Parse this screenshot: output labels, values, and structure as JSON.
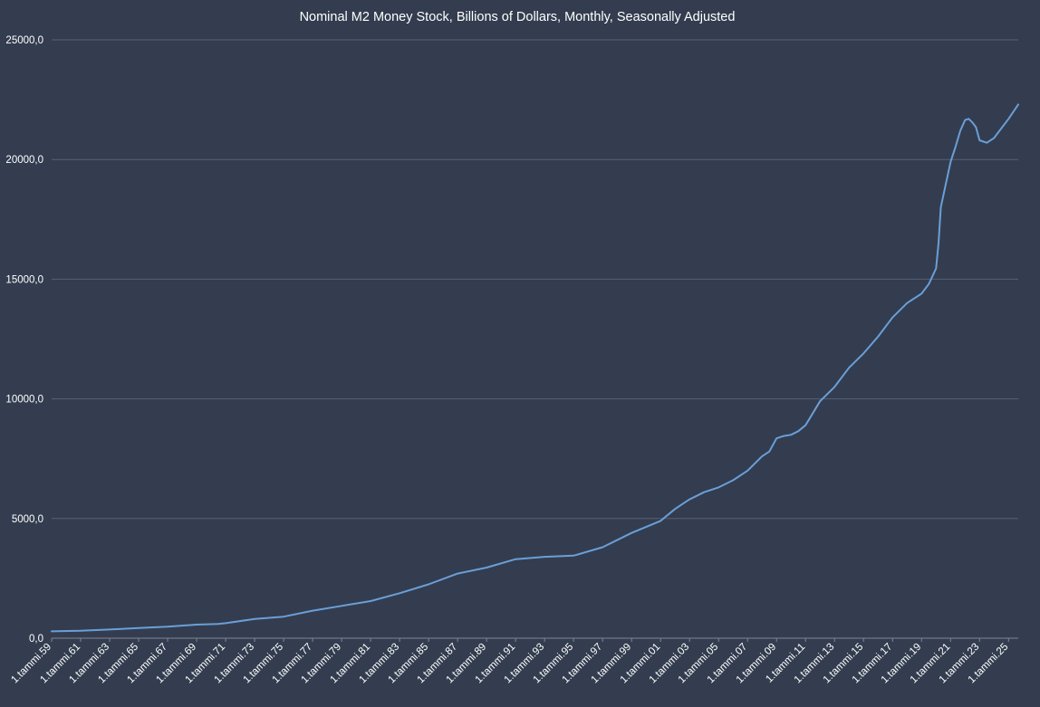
{
  "chart_data": {
    "type": "line",
    "title": "Nominal M2 Money Stock, Billions of Dollars, Monthly, Seasonally Adjusted",
    "xlabel": "",
    "ylabel": "",
    "ylim": [
      0,
      25000
    ],
    "y_ticks": [
      "0,0",
      "5000,0",
      "10000,0",
      "15000,0",
      "20000,0",
      "25000,0"
    ],
    "x_range": [
      1959,
      2025.67
    ],
    "x_tick_labels": [
      {
        "year": 1959,
        "label": "1.tammi.59"
      },
      {
        "year": 1961,
        "label": "1.tammi.61"
      },
      {
        "year": 1963,
        "label": "1.tammi.63"
      },
      {
        "year": 1965,
        "label": "1.tammi.65"
      },
      {
        "year": 1967,
        "label": "1.tammi.67"
      },
      {
        "year": 1969,
        "label": "1.tammi.69"
      },
      {
        "year": 1971,
        "label": "1.tammi.71"
      },
      {
        "year": 1973,
        "label": "1.tammi.73"
      },
      {
        "year": 1975,
        "label": "1.tammi.75"
      },
      {
        "year": 1977,
        "label": "1.tammi.77"
      },
      {
        "year": 1979,
        "label": "1.tammi.79"
      },
      {
        "year": 1981,
        "label": "1.tammi.81"
      },
      {
        "year": 1983,
        "label": "1.tammi.83"
      },
      {
        "year": 1985,
        "label": "1.tammi.85"
      },
      {
        "year": 1987,
        "label": "1.tammi.87"
      },
      {
        "year": 1989,
        "label": "1.tammi.89"
      },
      {
        "year": 1991,
        "label": "1.tammi.91"
      },
      {
        "year": 1993,
        "label": "1.tammi.93"
      },
      {
        "year": 1995,
        "label": "1.tammi.95"
      },
      {
        "year": 1997,
        "label": "1.tammi.97"
      },
      {
        "year": 1999,
        "label": "1.tammi.99"
      },
      {
        "year": 2001,
        "label": "1.tammi.01"
      },
      {
        "year": 2003,
        "label": "1.tammi.03"
      },
      {
        "year": 2005,
        "label": "1.tammi.05"
      },
      {
        "year": 2007,
        "label": "1.tammi.07"
      },
      {
        "year": 2009,
        "label": "1.tammi.09"
      },
      {
        "year": 2011,
        "label": "1.tammi.11"
      },
      {
        "year": 2013,
        "label": "1.tammi.13"
      },
      {
        "year": 2015,
        "label": "1.tammi.15"
      },
      {
        "year": 2017,
        "label": "1.tammi.17"
      },
      {
        "year": 2019,
        "label": "1.tammi.19"
      },
      {
        "year": 2021,
        "label": "1.tammi.21"
      },
      {
        "year": 2023,
        "label": "1.tammi.23"
      },
      {
        "year": 2025,
        "label": "1.tammi.25"
      }
    ],
    "grid": true,
    "legend": "none",
    "colors": {
      "background": "#333d4f",
      "line": "#6a9fd8",
      "grid": "#566274",
      "text": "#ffffff"
    },
    "series": [
      {
        "points": [
          [
            1959,
            287
          ],
          [
            1961,
            312
          ],
          [
            1963,
            364
          ],
          [
            1965,
            424
          ],
          [
            1967,
            480
          ],
          [
            1969,
            568
          ],
          [
            1970.5,
            595
          ],
          [
            1971,
            626
          ],
          [
            1973,
            802
          ],
          [
            1975,
            900
          ],
          [
            1977,
            1150
          ],
          [
            1979,
            1350
          ],
          [
            1981,
            1550
          ],
          [
            1983,
            1880
          ],
          [
            1985,
            2250
          ],
          [
            1987,
            2700
          ],
          [
            1989,
            2950
          ],
          [
            1991,
            3300
          ],
          [
            1993,
            3400
          ],
          [
            1995,
            3450
          ],
          [
            1997,
            3800
          ],
          [
            1999,
            4400
          ],
          [
            2001,
            4900
          ],
          [
            2002,
            5400
          ],
          [
            2003,
            5800
          ],
          [
            2004,
            6100
          ],
          [
            2005,
            6300
          ],
          [
            2006,
            6600
          ],
          [
            2007,
            7000
          ],
          [
            2008,
            7600
          ],
          [
            2008.5,
            7800
          ],
          [
            2009,
            8350
          ],
          [
            2009.5,
            8450
          ],
          [
            2010,
            8500
          ],
          [
            2010.5,
            8650
          ],
          [
            2011,
            8900
          ],
          [
            2011.3,
            9200
          ],
          [
            2011.7,
            9600
          ],
          [
            2012,
            9900
          ],
          [
            2013,
            10500
          ],
          [
            2014,
            11300
          ],
          [
            2015,
            11900
          ],
          [
            2016,
            12600
          ],
          [
            2017,
            13400
          ],
          [
            2018,
            14000
          ],
          [
            2019,
            14400
          ],
          [
            2019.5,
            14800
          ],
          [
            2020,
            15450
          ],
          [
            2020.17,
            16500
          ],
          [
            2020.33,
            18000
          ],
          [
            2020.5,
            18500
          ],
          [
            2021,
            19900
          ],
          [
            2021.33,
            20500
          ],
          [
            2021.67,
            21200
          ],
          [
            2022,
            21650
          ],
          [
            2022.25,
            21700
          ],
          [
            2022.5,
            21550
          ],
          [
            2022.75,
            21350
          ],
          [
            2023,
            20800
          ],
          [
            2023.5,
            20700
          ],
          [
            2024,
            20900
          ],
          [
            2024.5,
            21300
          ],
          [
            2025,
            21700
          ],
          [
            2025.67,
            22300
          ]
        ]
      }
    ]
  }
}
